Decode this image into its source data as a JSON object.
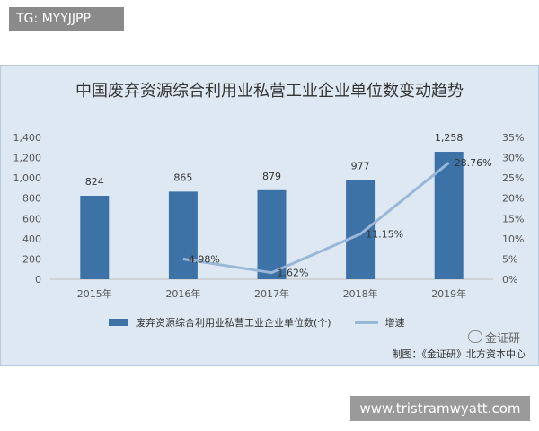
{
  "tag": "TG: MYYJJPP",
  "site": "www.tristramwyatt.com",
  "watermark": "金证研",
  "source": "制图：《金证研》北方资本中心",
  "colors": {
    "bar": "#3d72a7",
    "line": "#9ab6d8",
    "background": "#dde8f2"
  },
  "chart_data": {
    "type": "bar",
    "title": "中国废弃资源综合利用业私营工业企业单位数变动趋势",
    "categories": [
      "2015年",
      "2016年",
      "2017年",
      "2018年",
      "2019年"
    ],
    "series": [
      {
        "name": "废弃资源综合利用业私营工业企业单位数(个)",
        "type": "bar",
        "axis": "left",
        "values": [
          824,
          865,
          879,
          977,
          1258
        ],
        "labels": [
          "824",
          "865",
          "879",
          "977",
          "1,258"
        ]
      },
      {
        "name": "增速",
        "type": "line",
        "axis": "right",
        "values": [
          null,
          4.98,
          1.62,
          11.15,
          28.76
        ],
        "labels": [
          "",
          "4.98%",
          "1.62%",
          "11.15%",
          "28.76%"
        ]
      }
    ],
    "ylim_left": [
      0,
      1400
    ],
    "yticks_left": [
      "0",
      "200",
      "400",
      "600",
      "800",
      "1,000",
      "1,200",
      "1,400"
    ],
    "ylim_right": [
      0,
      35
    ],
    "yticks_right": [
      "0%",
      "5%",
      "10%",
      "15%",
      "20%",
      "25%",
      "30%",
      "35%"
    ],
    "grid": false,
    "legend": "bottom"
  }
}
